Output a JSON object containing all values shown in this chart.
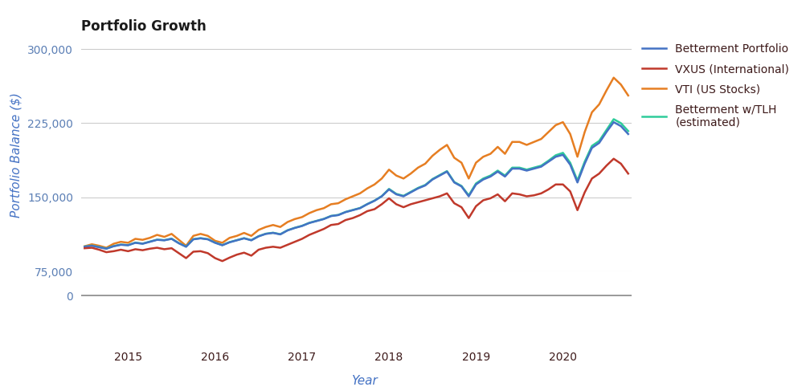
{
  "title": "Portfolio Growth",
  "xlabel": "Year",
  "ylabel": "Portfolio Balance ($)",
  "background_color": "#ffffff",
  "title_fontsize": 12,
  "label_fontsize": 11,
  "tick_fontsize": 10,
  "legend_fontsize": 10,
  "tick_color": "#5b7fb5",
  "text_color": "#3d1a1a",
  "label_color": "#4472c4",
  "grid_color": "#cccccc",
  "ylim_main": [
    75000,
    310000
  ],
  "yticks": [
    75000,
    150000,
    225000,
    300000
  ],
  "series": {
    "betterment": {
      "label": "Betterment Portfolio",
      "color": "#4472c4",
      "linewidth": 1.8
    },
    "vxus": {
      "label": "VXUS (International)",
      "color": "#c0392b",
      "linewidth": 1.8
    },
    "vti": {
      "label": "VTI (US Stocks)",
      "color": "#e67e22",
      "linewidth": 1.8
    },
    "betterment_tlh": {
      "label": "Betterment w/TLH\n(estimated)",
      "color": "#2ecc9a",
      "linewidth": 1.8
    }
  },
  "betterment_data": [
    100000,
    101000,
    99500,
    98000,
    100500,
    102000,
    101500,
    104000,
    103000,
    105000,
    107000,
    106500,
    108000,
    103500,
    100000,
    107500,
    108500,
    107500,
    104000,
    101500,
    104500,
    106500,
    108500,
    106500,
    110500,
    113000,
    114000,
    112500,
    116500,
    119000,
    121000,
    124000,
    126000,
    128000,
    131000,
    132000,
    135000,
    137000,
    139000,
    143000,
    146500,
    151000,
    158000,
    153000,
    151000,
    155000,
    159000,
    162000,
    168000,
    172000,
    176000,
    165000,
    161000,
    151000,
    163000,
    168000,
    171000,
    176000,
    171000,
    179000,
    179000,
    177000,
    179000,
    181000,
    186000,
    191000,
    193000,
    183000,
    165000,
    184000,
    200000,
    205000,
    216000,
    226000,
    222000,
    214000
  ],
  "vxus_data": [
    98500,
    99000,
    97000,
    94500,
    95500,
    97000,
    95500,
    97500,
    96500,
    98000,
    99000,
    97500,
    98500,
    93500,
    88500,
    95000,
    95500,
    93500,
    88500,
    85500,
    89000,
    92000,
    94000,
    91000,
    97000,
    99000,
    100000,
    99000,
    102000,
    105000,
    108000,
    112000,
    115000,
    118000,
    122000,
    123000,
    127000,
    129000,
    132000,
    136000,
    138000,
    143000,
    149000,
    143000,
    140000,
    143000,
    145000,
    147000,
    149000,
    151000,
    154000,
    144000,
    140000,
    129000,
    141000,
    147000,
    149000,
    153000,
    146000,
    154000,
    153000,
    151000,
    152000,
    154000,
    158000,
    163000,
    163000,
    156000,
    137000,
    155000,
    169000,
    174000,
    182000,
    189000,
    184000,
    174000
  ],
  "vti_data": [
    100500,
    102500,
    101000,
    99000,
    103000,
    105000,
    104000,
    108000,
    107000,
    109000,
    112000,
    110000,
    113000,
    107000,
    101000,
    111000,
    113000,
    111000,
    106000,
    104000,
    109000,
    111000,
    114000,
    111000,
    117000,
    120000,
    122000,
    120000,
    125000,
    128000,
    130000,
    134000,
    137000,
    139000,
    143000,
    144000,
    148000,
    151000,
    154000,
    159000,
    163000,
    169000,
    178000,
    172000,
    169000,
    174000,
    180000,
    184000,
    192000,
    198000,
    203000,
    190000,
    185000,
    169000,
    185000,
    191000,
    194000,
    201000,
    194000,
    206000,
    206000,
    203000,
    206000,
    209000,
    216000,
    223000,
    226000,
    214000,
    191000,
    216000,
    236000,
    244000,
    258000,
    271000,
    264000,
    253000
  ],
  "betterment_tlh_data": [
    100200,
    101200,
    99700,
    98200,
    100700,
    102200,
    101700,
    104200,
    103200,
    105200,
    107200,
    106700,
    108200,
    103700,
    100200,
    107700,
    108700,
    107700,
    104200,
    101700,
    104700,
    106700,
    108700,
    106700,
    110700,
    113200,
    114200,
    112700,
    116700,
    119200,
    121200,
    124200,
    126200,
    128200,
    131200,
    132200,
    135200,
    137200,
    139200,
    143200,
    146700,
    151200,
    158500,
    153500,
    151500,
    155500,
    159500,
    162500,
    168500,
    172500,
    176500,
    165500,
    161500,
    152000,
    164000,
    169000,
    172000,
    177000,
    172000,
    180000,
    180000,
    178000,
    180000,
    182000,
    187000,
    192500,
    195000,
    185000,
    167000,
    186000,
    202000,
    207000,
    218000,
    229000,
    225000,
    217000
  ],
  "xtick_labels": [
    "2015",
    "2016",
    "2017",
    "2018",
    "2019",
    "2020"
  ],
  "n_points": 76
}
